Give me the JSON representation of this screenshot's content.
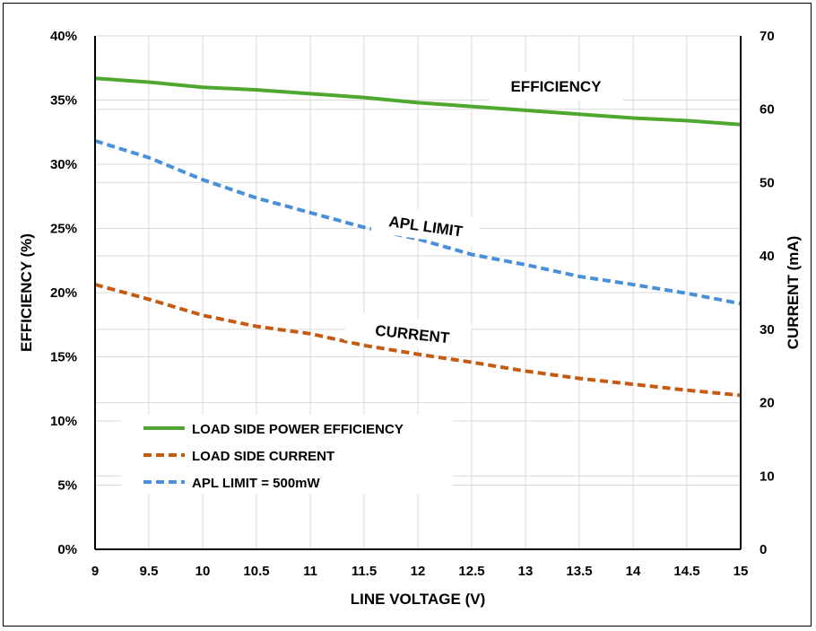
{
  "chart_data": {
    "type": "line",
    "xlabel": "LINE VOLTAGE (V)",
    "ylabel": "EFFICIENCY (%)",
    "y2label": "CURRENT (mA)",
    "xlim": [
      9,
      15
    ],
    "ylim": [
      0,
      40
    ],
    "y2lim": [
      0,
      70
    ],
    "x_ticks": [
      "9",
      "9.5",
      "10",
      "10.5",
      "11",
      "11.5",
      "12",
      "12.5",
      "13",
      "13.5",
      "14",
      "14.5",
      "15"
    ],
    "y_ticks": [
      "0%",
      "5%",
      "10%",
      "15%",
      "20%",
      "25%",
      "30%",
      "35%",
      "40%"
    ],
    "y2_ticks": [
      "0",
      "10",
      "20",
      "30",
      "40",
      "50",
      "60",
      "70"
    ],
    "grid": true,
    "legend_position": "bottom-left",
    "x": [
      9,
      9.5,
      10,
      10.5,
      11,
      11.5,
      12,
      12.5,
      13,
      13.5,
      14,
      14.5,
      15
    ],
    "series": [
      {
        "name": "LOAD SIDE POWER EFFICIENCY",
        "axis": "left",
        "style": "solid",
        "color": "#4ea72e",
        "values": [
          36.7,
          36.4,
          36.0,
          35.8,
          35.5,
          35.2,
          34.8,
          34.5,
          34.2,
          33.9,
          33.6,
          33.4,
          33.1
        ]
      },
      {
        "name": "LOAD SIDE CURRENT",
        "axis": "right",
        "style": "dashed",
        "color": "#c55a11",
        "values": [
          36.1,
          34.1,
          31.9,
          30.4,
          29.4,
          27.8,
          26.6,
          25.5,
          24.3,
          23.3,
          22.5,
          21.7,
          21.0
        ]
      },
      {
        "name": "APL LIMIT = 500mW",
        "axis": "right",
        "style": "dashed",
        "color": "#4a90d9",
        "values": [
          55.7,
          53.4,
          50.4,
          47.9,
          45.9,
          43.9,
          42.3,
          40.2,
          38.8,
          37.2,
          36.1,
          34.9,
          33.5
        ]
      }
    ],
    "annotations": [
      "EFFICIENCY",
      "APL LIMIT",
      "CURRENT"
    ]
  }
}
